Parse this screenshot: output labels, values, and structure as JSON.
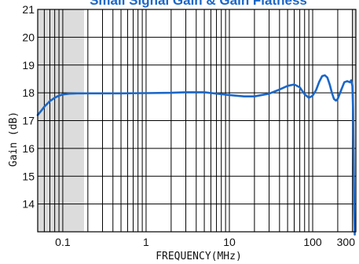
{
  "chart_data": {
    "type": "line",
    "title": "Small Signal Gain & Gain Flatness",
    "xlabel": "FREQUENCY(MHz)",
    "ylabel": "Gain (dB)",
    "x_scale": "log",
    "xlim": [
      0.05,
      330
    ],
    "ylim": [
      13,
      21
    ],
    "grid": true,
    "xtick_labels": [
      "0.1",
      "1",
      "10",
      "100",
      "300"
    ],
    "xtick_values": [
      0.1,
      1,
      10,
      100,
      300
    ],
    "ytick_labels": [
      "14",
      "15",
      "16",
      "17",
      "18",
      "19",
      "20",
      "21"
    ],
    "ytick_values": [
      14,
      15,
      16,
      17,
      18,
      19,
      20,
      21
    ],
    "shaded_ranges_x": [
      [
        0.05,
        0.18
      ],
      [
        300,
        330
      ]
    ],
    "line_color": "#1b67c8",
    "shade_color": "#dcdcdc",
    "series": [
      {
        "x": [
          0.05,
          0.055,
          0.06,
          0.07,
          0.08,
          0.09,
          0.1,
          0.12,
          0.15,
          0.2,
          0.3,
          0.5,
          1,
          2,
          3,
          5,
          10,
          15,
          20,
          30,
          40,
          50,
          60,
          70,
          80,
          90,
          100,
          110,
          120,
          130,
          140,
          150,
          160,
          170,
          180,
          190,
          200,
          220,
          240,
          260,
          280,
          290,
          300,
          305,
          310,
          315,
          320
        ],
        "y": [
          17.2,
          17.35,
          17.5,
          17.7,
          17.82,
          17.9,
          17.94,
          17.97,
          17.98,
          17.98,
          17.98,
          17.98,
          17.99,
          18.0,
          18.02,
          18.02,
          17.92,
          17.87,
          17.87,
          17.97,
          18.12,
          18.25,
          18.3,
          18.2,
          17.95,
          17.82,
          17.9,
          18.1,
          18.4,
          18.6,
          18.63,
          18.55,
          18.3,
          18.0,
          17.78,
          17.72,
          17.78,
          18.1,
          18.38,
          18.42,
          18.38,
          18.45,
          18.25,
          17.4,
          15.8,
          13.8,
          12.9
        ]
      }
    ]
  }
}
